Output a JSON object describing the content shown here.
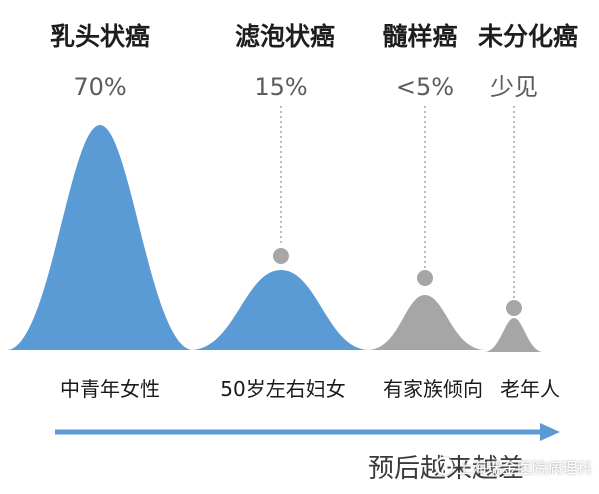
{
  "types": [
    {
      "title": "乳头状癌",
      "share": "70%",
      "group": "中青年女性",
      "color": "#5b9bd5"
    },
    {
      "title": "滤泡状癌",
      "share": "15%",
      "group": "50岁左右妇女",
      "color": "#5b9bd5"
    },
    {
      "title": "髓样癌",
      "share": "<5%",
      "group": "有家族倾向",
      "color": "#a6a6a6"
    },
    {
      "title": "未分化癌",
      "share": "少见",
      "group": "老年人",
      "color": "#a6a6a6"
    }
  ],
  "footer": {
    "text": "预后越来越差"
  },
  "watermark": {
    "text": "上海瑞金医院病理科"
  },
  "colors": {
    "arrow": "#5b9bd5",
    "dot": "#a6a6a6",
    "dotted_line": "#bdbdbd"
  }
}
